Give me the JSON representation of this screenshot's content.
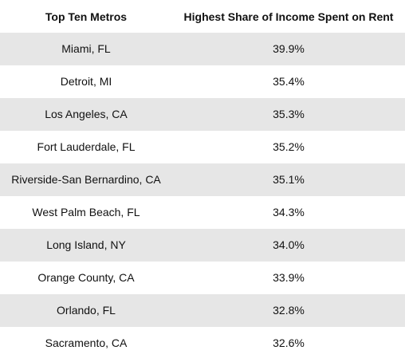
{
  "chart_data": {
    "type": "table",
    "columns": [
      "Top Ten Metros",
      "Highest Share of Income Spent on Rent"
    ],
    "rows": [
      {
        "metro": "Miami, FL",
        "share": "39.9%"
      },
      {
        "metro": "Detroit, MI",
        "share": "35.4%"
      },
      {
        "metro": "Los Angeles, CA",
        "share": "35.3%"
      },
      {
        "metro": "Fort Lauderdale, FL",
        "share": "35.2%"
      },
      {
        "metro": "Riverside-San Bernardino, CA",
        "share": "35.1%"
      },
      {
        "metro": "West Palm Beach, FL",
        "share": "34.3%"
      },
      {
        "metro": "Long Island, NY",
        "share": "34.0%"
      },
      {
        "metro": "Orange County, CA",
        "share": "33.9%"
      },
      {
        "metro": "Orlando, FL",
        "share": "32.8%"
      },
      {
        "metro": "Sacramento, CA",
        "share": "32.6%"
      }
    ],
    "colors": {
      "shaded_row": "#e6e6e6",
      "plain_row": "#ffffff",
      "text": "#111111"
    }
  }
}
